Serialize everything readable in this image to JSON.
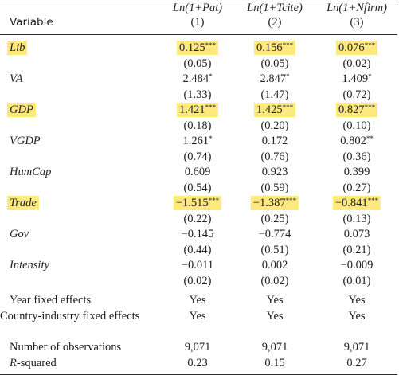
{
  "table": {
    "header": {
      "variable": "Variable",
      "columns": [
        {
          "title": "Ln(1+Pat)",
          "number": "(1)"
        },
        {
          "title": "Ln(1+Tcite)",
          "number": "(2)"
        },
        {
          "title": "Ln(1+Nfirm)",
          "number": "(3)"
        }
      ]
    },
    "variables": [
      {
        "label": "Lib",
        "highlight": true,
        "coef": [
          {
            "value": "0.125",
            "stars": "***"
          },
          {
            "value": "0.156",
            "stars": "***"
          },
          {
            "value": "0.076",
            "stars": "***"
          }
        ],
        "se": [
          "(0.05)",
          "(0.05)",
          "(0.02)"
        ]
      },
      {
        "label": "VA",
        "highlight": false,
        "coef": [
          {
            "value": "2.484",
            "stars": "*"
          },
          {
            "value": "2.847",
            "stars": "*"
          },
          {
            "value": "1.409",
            "stars": "*"
          }
        ],
        "se": [
          "(1.33)",
          "(1.47)",
          "(0.72)"
        ]
      },
      {
        "label": "GDP",
        "highlight": true,
        "coef": [
          {
            "value": "1.421",
            "stars": "***"
          },
          {
            "value": "1.425",
            "stars": "***"
          },
          {
            "value": "0.827",
            "stars": "***"
          }
        ],
        "se": [
          "(0.18)",
          "(0.20)",
          "(0.10)"
        ]
      },
      {
        "label": "VGDP",
        "highlight": false,
        "coef": [
          {
            "value": "1.261",
            "stars": "*"
          },
          {
            "value": "0.172"
          },
          {
            "value": "0.802",
            "stars": "**"
          }
        ],
        "se": [
          "(0.74)",
          "(0.76)",
          "(0.36)"
        ]
      },
      {
        "label": "HumCap",
        "highlight": false,
        "coef": [
          {
            "value": "0.609"
          },
          {
            "value": "0.923"
          },
          {
            "value": "0.399"
          }
        ],
        "se": [
          "(0.54)",
          "(0.59)",
          "(0.27)"
        ]
      },
      {
        "label": "Trade",
        "highlight": true,
        "coef": [
          {
            "value": "−1.515",
            "stars": "***"
          },
          {
            "value": "−1.387",
            "stars": "***"
          },
          {
            "value": "−0.841",
            "stars": "***"
          }
        ],
        "se": [
          "(0.22)",
          "(0.25)",
          "(0.13)"
        ]
      },
      {
        "label": "Gov",
        "highlight": false,
        "coef": [
          {
            "value": "−0.145"
          },
          {
            "value": "−0.774"
          },
          {
            "value": "0.073"
          }
        ],
        "se": [
          "(0.44)",
          "(0.51)",
          "(0.21)"
        ]
      },
      {
        "label": "Intensity",
        "highlight": false,
        "coef": [
          {
            "value": "−0.011"
          },
          {
            "value": "0.002"
          },
          {
            "value": "−0.009"
          }
        ],
        "se": [
          "(0.02)",
          "(0.02)",
          "(0.01)"
        ]
      }
    ],
    "footer": [
      {
        "label": "Year fixed effects",
        "values": [
          "Yes",
          "Yes",
          "Yes"
        ]
      },
      {
        "label": "Country-industry fixed effects",
        "values": [
          "Yes",
          "Yes",
          "Yes"
        ]
      },
      {
        "label": "Number of observations",
        "values": [
          "9,071",
          "9,071",
          "9,071"
        ]
      },
      {
        "label_italic": "R",
        "label": "-squared",
        "values": [
          "0.23",
          "0.15",
          "0.27"
        ]
      }
    ]
  }
}
